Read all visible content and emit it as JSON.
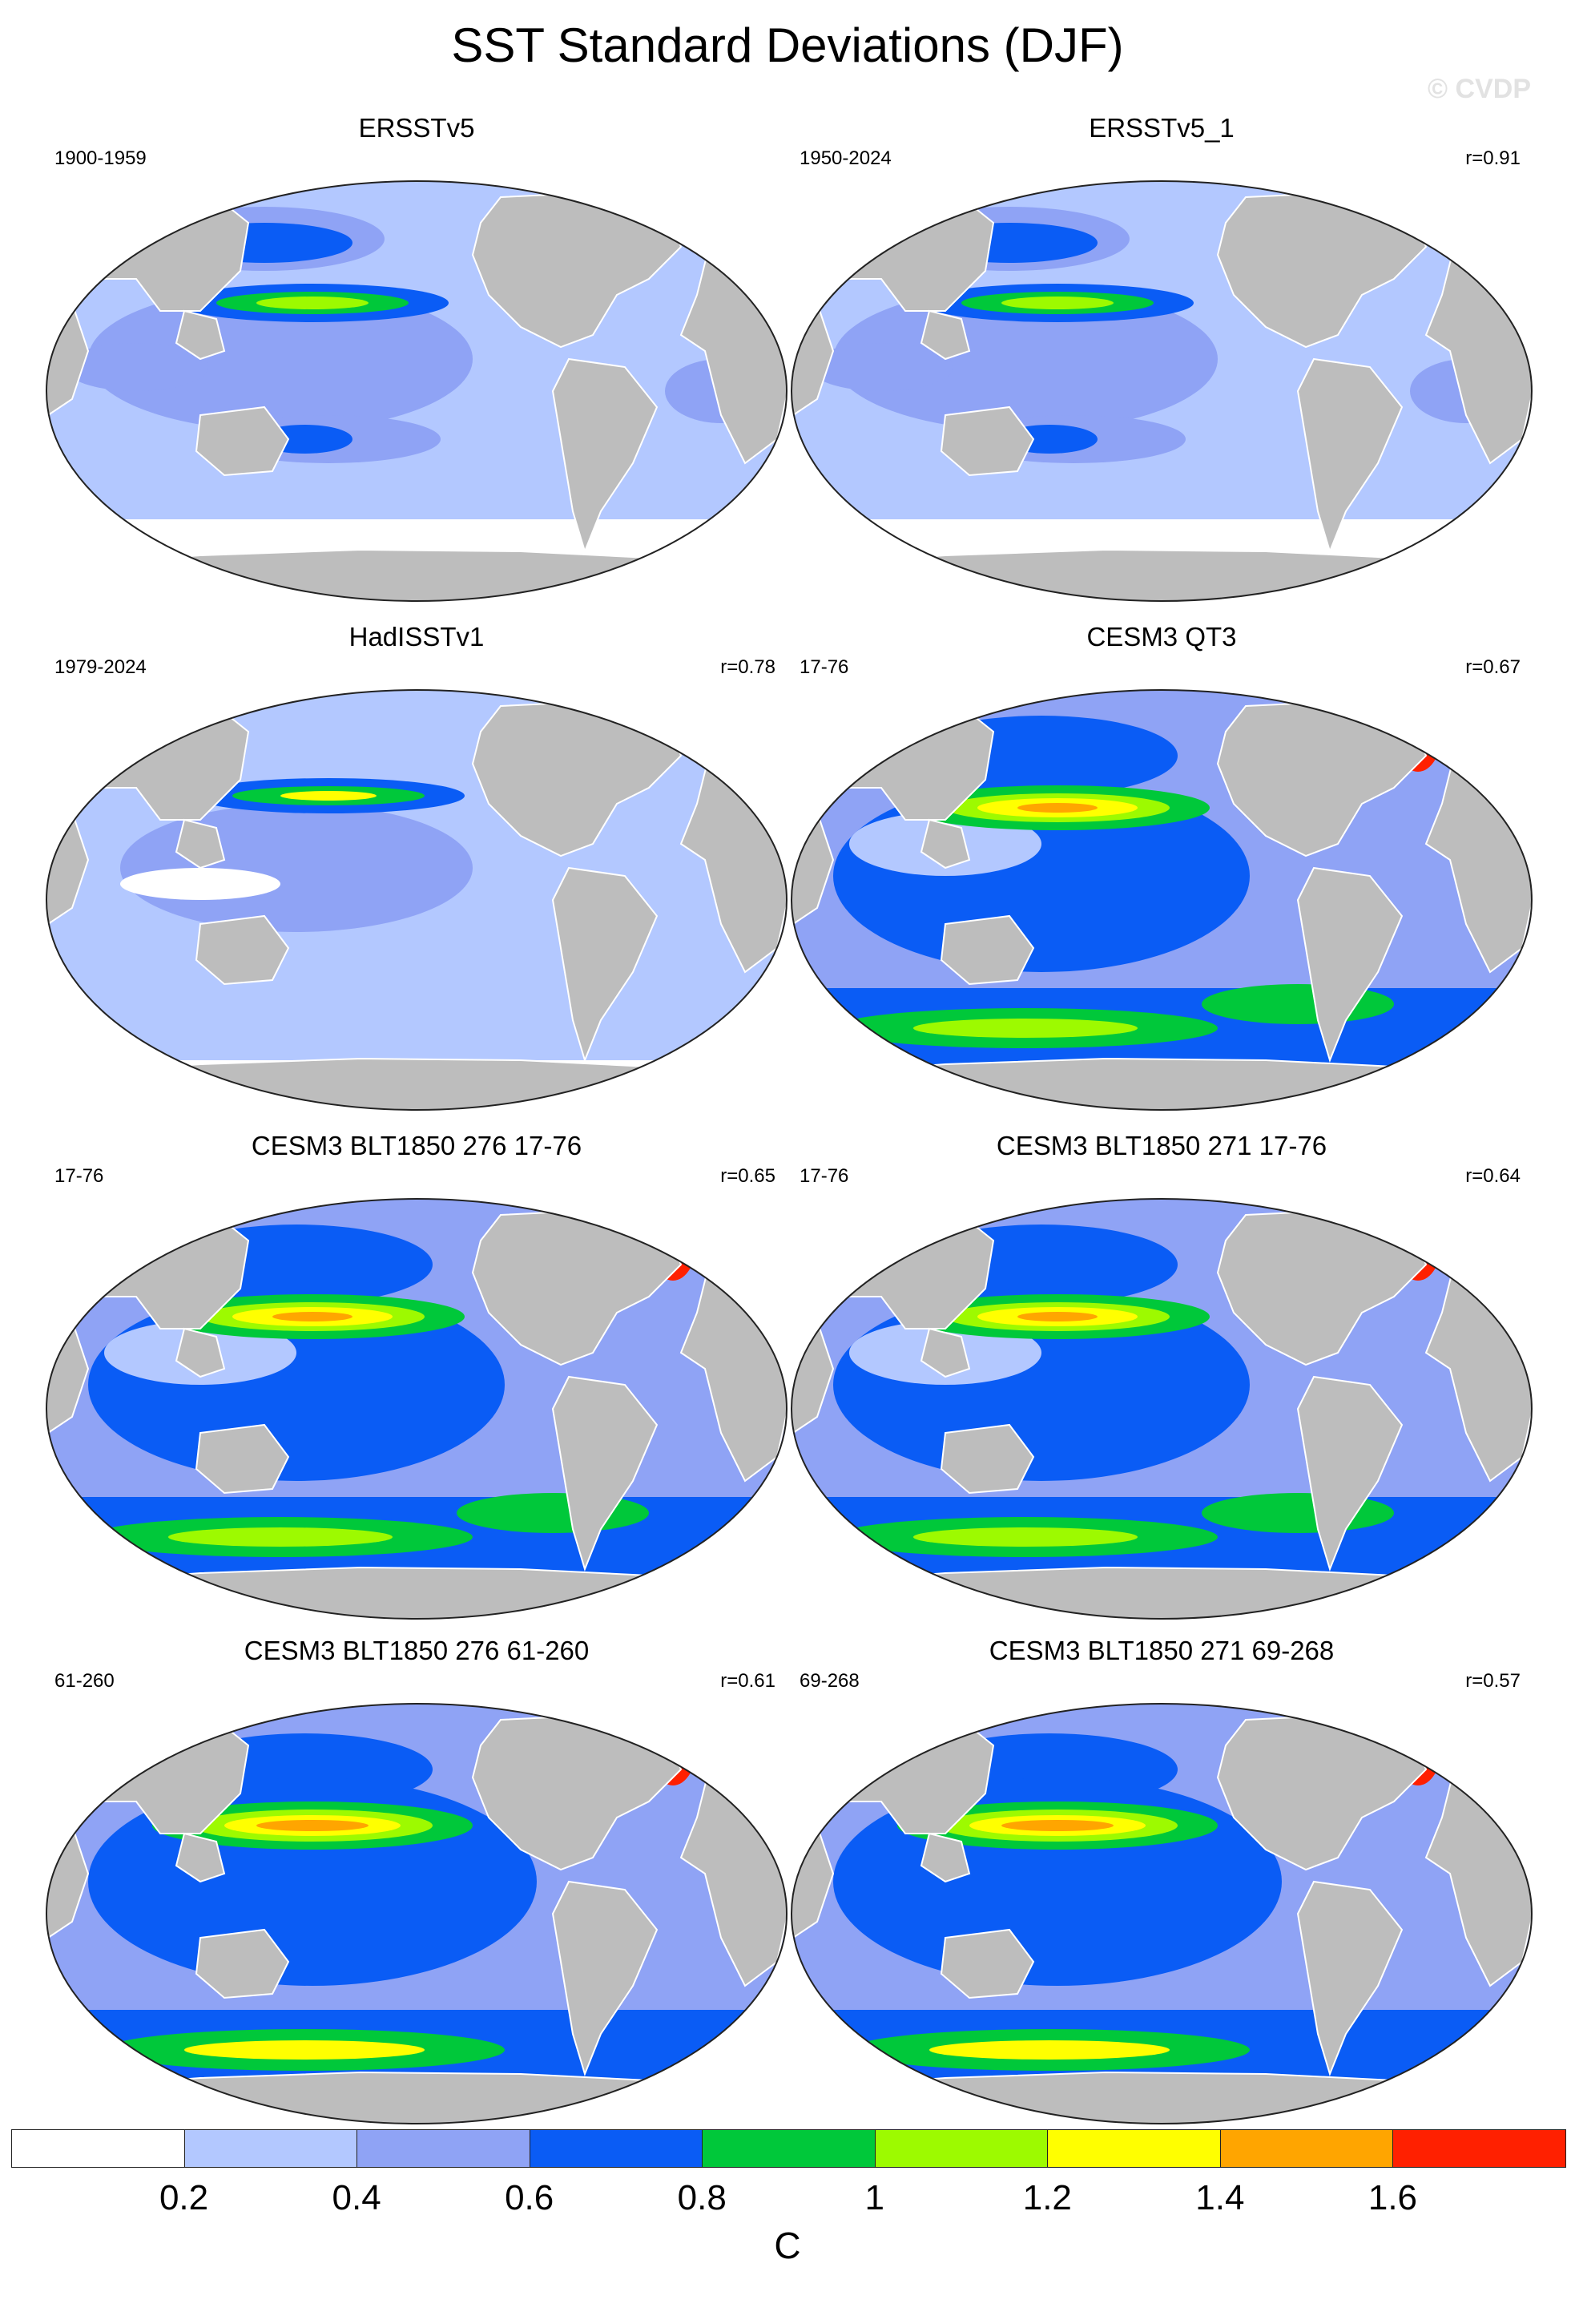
{
  "title": "SST Standard Deviations (DJF)",
  "watermark": "© CVDP",
  "panels": [
    {
      "name": "ERSSTv5",
      "years": "1900-1959",
      "r": ""
    },
    {
      "name": "ERSSTv5_1",
      "years": "1950-2024",
      "r": "r=0.91"
    },
    {
      "name": "HadISSTv1",
      "years": "1979-2024",
      "r": "r=0.78"
    },
    {
      "name": "CESM3 QT3",
      "years": "17-76",
      "r": "r=0.67"
    },
    {
      "name": "CESM3 BLT1850 276 17-76",
      "years": "17-76",
      "r": "r=0.65"
    },
    {
      "name": "CESM3 BLT1850 271 17-76",
      "years": "17-76",
      "r": "r=0.64"
    },
    {
      "name": "CESM3 BLT1850 276 61-260",
      "years": "61-260",
      "r": "r=0.61"
    },
    {
      "name": "CESM3 BLT1850 271 69-268",
      "years": "69-268",
      "r": "r=0.57"
    }
  ],
  "colorbar": {
    "unit": "C",
    "tick_labels": [
      "0.2",
      "0.4",
      "0.6",
      "0.8",
      "1",
      "1.2",
      "1.4",
      "1.6"
    ],
    "colors": [
      "#ffffff",
      "#b3c8ff",
      "#8fa3f5",
      "#0a5cf5",
      "#00c83a",
      "#9dfa00",
      "#ffff00",
      "#ffa500",
      "#ff2000"
    ]
  },
  "colors": {
    "land": "#bdbdbd",
    "ocean_low": "#b3c8ff"
  }
}
